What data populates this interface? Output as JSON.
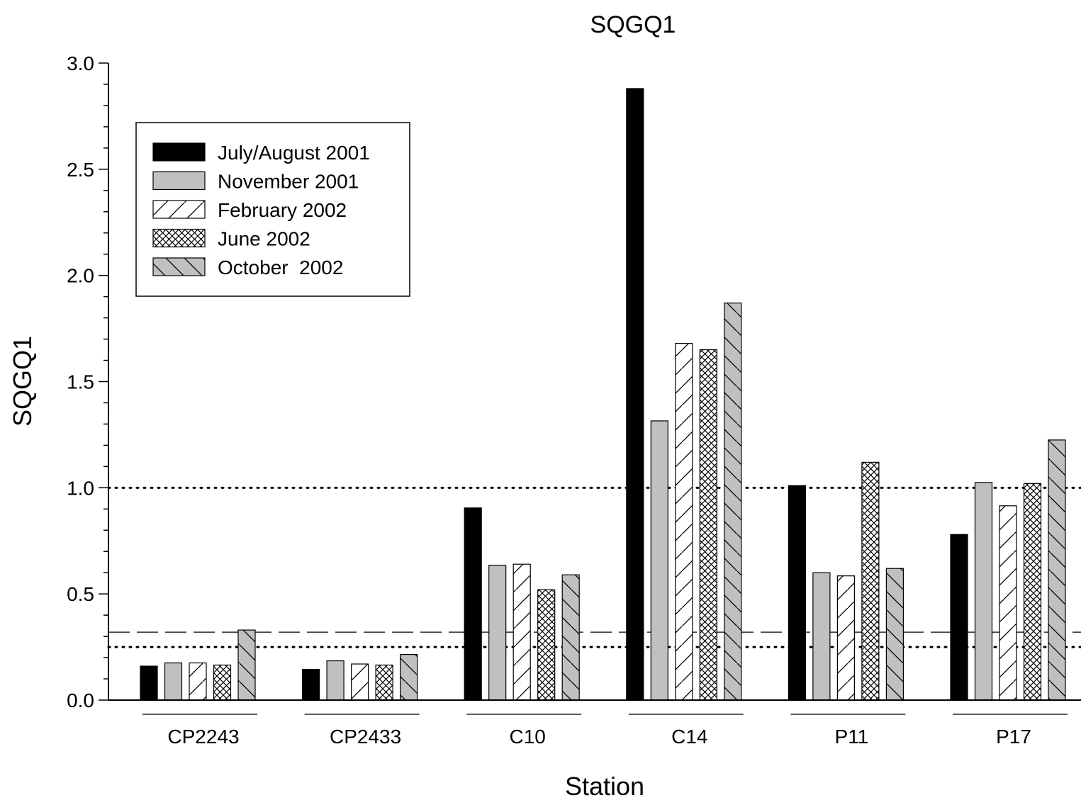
{
  "chart_data": {
    "type": "bar",
    "title": "SQGQ1",
    "xlabel": "Station",
    "ylabel": "SQGQ1",
    "ylim": [
      0,
      3.0
    ],
    "yticks": [
      "0.0",
      "0.5",
      "1.0",
      "1.5",
      "2.0",
      "2.5",
      "3.0"
    ],
    "categories": [
      "CP2243",
      "CP2433",
      "C10",
      "C14",
      "P11",
      "P17"
    ],
    "series": [
      {
        "name": "July/August 2001",
        "pattern": "solid-black",
        "values": [
          0.16,
          0.145,
          0.905,
          2.88,
          1.01,
          0.78
        ]
      },
      {
        "name": "November 2001",
        "pattern": "solid-gray",
        "values": [
          0.175,
          0.185,
          0.635,
          1.315,
          0.6,
          1.025
        ]
      },
      {
        "name": "February 2002",
        "pattern": "forward-hatch",
        "values": [
          0.175,
          0.17,
          0.64,
          1.68,
          0.585,
          0.915
        ]
      },
      {
        "name": "June 2002",
        "pattern": "cross-hatch",
        "values": [
          0.165,
          0.165,
          0.52,
          1.65,
          1.12,
          1.02
        ]
      },
      {
        "name": "October  2002",
        "pattern": "back-hatch-gray",
        "values": [
          0.33,
          0.215,
          0.59,
          1.87,
          0.62,
          1.225
        ]
      }
    ],
    "reference_lines": [
      {
        "style": "dotted",
        "value": 1.0
      },
      {
        "style": "dashed",
        "value": 0.32
      },
      {
        "style": "dotted",
        "value": 0.25
      }
    ],
    "legend_position": "top-left",
    "grid": false,
    "colors": {
      "black": "#000000",
      "gray": "#c0c0c0",
      "white": "#ffffff"
    }
  }
}
